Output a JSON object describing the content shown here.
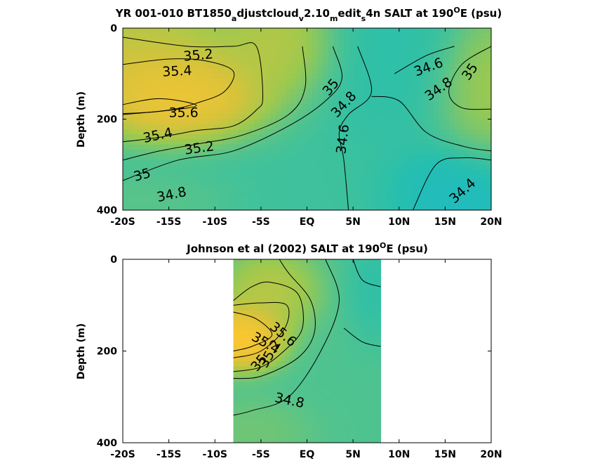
{
  "chart_data": [
    {
      "type": "heatmap",
      "title": "YR 001-010 BT1850_adjustcloud_v2.10_medit_s4n SALT at 190°E (psu)",
      "title_parts": [
        "YR 001-010 BT1850",
        "a",
        "djustcloud",
        "v",
        "2.10",
        "m",
        "edit",
        "s",
        "4n SALT at 190",
        "O",
        "E (psu)"
      ],
      "ylabel": "Depth (m)",
      "xlim": [
        -20,
        20
      ],
      "ylim": [
        0,
        400
      ],
      "y_reversed": true,
      "x_ticks": [
        {
          "value": -20,
          "label": "-20S"
        },
        {
          "value": -15,
          "label": "-15S"
        },
        {
          "value": -10,
          "label": "-10S"
        },
        {
          "value": -5,
          "label": "-5S"
        },
        {
          "value": 0,
          "label": "EQ"
        },
        {
          "value": 5,
          "label": "5N"
        },
        {
          "value": 10,
          "label": "10N"
        },
        {
          "value": 15,
          "label": "15N"
        },
        {
          "value": 20,
          "label": "20N"
        }
      ],
      "y_ticks": [
        {
          "value": 0,
          "label": "0"
        },
        {
          "value": 200,
          "label": "200"
        },
        {
          "value": 400,
          "label": "400"
        }
      ],
      "colors": [
        "#1ab5d6",
        "#26bfae",
        "#5cc486",
        "#9cc94f",
        "#d8c33a",
        "#f9c633",
        "#f9e52a"
      ],
      "color_range": [
        34.3,
        35.75
      ],
      "blobs": [
        {
          "x": -14,
          "y": 150,
          "v": 35.68,
          "rx": 7.5,
          "ry": 75
        },
        {
          "x": -18,
          "y": 60,
          "v": 35.35,
          "rx": 9,
          "ry": 110
        },
        {
          "x": -3,
          "y": 30,
          "v": 35.25,
          "rx": 5,
          "ry": 90
        },
        {
          "x": 9,
          "y": 40,
          "v": 34.55,
          "rx": 6,
          "ry": 160
        },
        {
          "x": 20,
          "y": 130,
          "v": 35.15,
          "rx": 4.5,
          "ry": 130
        },
        {
          "x": 17,
          "y": 370,
          "v": 34.38,
          "rx": 6,
          "ry": 90
        },
        {
          "x": -18,
          "y": 380,
          "v": 34.8,
          "rx": 7,
          "ry": 50
        }
      ],
      "background": 34.65,
      "contours": [
        {
          "level": "35.2",
          "points": [
            [
              -20,
              20
            ],
            [
              -13,
              40
            ],
            [
              -8,
              40
            ],
            [
              -5.5,
              40
            ],
            [
              -4.8,
              150
            ],
            [
              -5.5,
              180
            ],
            [
              -8,
              215
            ],
            [
              -12,
              225
            ],
            [
              -16,
              240
            ],
            [
              -20,
              250
            ]
          ]
        },
        {
          "level": "35.4",
          "points": [
            [
              -20,
              80
            ],
            [
              -15,
              68
            ],
            [
              -11,
              72
            ],
            [
              -8,
              95
            ],
            [
              -9,
              140
            ],
            [
              -12,
              165
            ],
            [
              -15,
              180
            ],
            [
              -20,
              190
            ]
          ]
        },
        {
          "level": "35.6",
          "points": [
            [
              -20,
              168
            ],
            [
              -16,
              155
            ],
            [
              -12,
              170
            ],
            [
              -16,
              183
            ],
            [
              -20,
              188
            ]
          ]
        },
        {
          "level": "35",
          "points": [
            [
              -0.5,
              40
            ],
            [
              -0.2,
              130
            ],
            [
              -2,
              190
            ],
            [
              -7,
              235
            ],
            [
              -12,
              255
            ],
            [
              -16,
              270
            ],
            [
              -20,
              290
            ]
          ]
        },
        {
          "level": "34.8",
          "points": [
            [
              2.8,
              40
            ],
            [
              3.8,
              110
            ],
            [
              2,
              160
            ],
            [
              -2,
              215
            ],
            [
              -8,
              270
            ],
            [
              -14,
              290
            ],
            [
              -20,
              335
            ]
          ]
        },
        {
          "level": "34.6",
          "points": [
            [
              5.5,
              40
            ],
            [
              7,
              140
            ],
            [
              4.5,
              190
            ],
            [
              3.5,
              230
            ],
            [
              4,
              290
            ],
            [
              4.5,
              400
            ]
          ]
        },
        {
          "level": "34.6",
          "points": [
            [
              9.5,
              100
            ],
            [
              13,
              60
            ],
            [
              16,
              40
            ]
          ]
        },
        {
          "level": "34.8",
          "points": [
            [
              7,
              150
            ],
            [
              10,
              160
            ],
            [
              13,
              230
            ],
            [
              17,
              260
            ],
            [
              20,
              270
            ]
          ]
        },
        {
          "level": "35",
          "points": [
            [
              20,
              40
            ],
            [
              16.8,
              80
            ],
            [
              15.4,
              140
            ],
            [
              16.8,
              175
            ],
            [
              20,
              178
            ]
          ]
        },
        {
          "level": "34.4",
          "points": [
            [
              11.5,
              400
            ],
            [
              14,
              300
            ],
            [
              17,
              285
            ],
            [
              20,
              290
            ]
          ]
        }
      ],
      "labels": [
        {
          "text": "35.2",
          "x": -11.8,
          "y": 60,
          "rot": -5
        },
        {
          "text": "35.4",
          "x": -14.1,
          "y": 95,
          "rot": -3
        },
        {
          "text": "35.6",
          "x": -13.4,
          "y": 186,
          "rot": 0
        },
        {
          "text": "35.4",
          "x": -16.2,
          "y": 236,
          "rot": -12
        },
        {
          "text": "35.2",
          "x": -11.7,
          "y": 264,
          "rot": -8
        },
        {
          "text": "35",
          "x": -17.9,
          "y": 323,
          "rot": -15
        },
        {
          "text": "34.8",
          "x": -14.7,
          "y": 366,
          "rot": -12
        },
        {
          "text": "35",
          "x": 2.6,
          "y": 130,
          "rot": -50
        },
        {
          "text": "34.8",
          "x": 4.0,
          "y": 168,
          "rot": -47
        },
        {
          "text": "34.6",
          "x": 3.9,
          "y": 244,
          "rot": -83
        },
        {
          "text": "34.6",
          "x": 13.2,
          "y": 86,
          "rot": -20
        },
        {
          "text": "34.8",
          "x": 14.3,
          "y": 134,
          "rot": -35
        },
        {
          "text": "35",
          "x": 17.7,
          "y": 96,
          "rot": -55
        },
        {
          "text": "34.4",
          "x": 16.9,
          "y": 358,
          "rot": -42
        }
      ]
    },
    {
      "type": "heatmap",
      "title": "Johnson et al (2002) SALT at 190°E (psu)",
      "title_parts": [
        "Johnson et al (2002) SALT at 190",
        "O",
        "E (psu)"
      ],
      "ylabel": "Depth (m)",
      "xlim": [
        -20,
        20
      ],
      "ylim": [
        0,
        400
      ],
      "y_reversed": true,
      "data_xlim": [
        -8,
        8
      ],
      "x_ticks": [
        {
          "value": -20,
          "label": "-20S"
        },
        {
          "value": -15,
          "label": "-15S"
        },
        {
          "value": -10,
          "label": "-10S"
        },
        {
          "value": -5,
          "label": "-5S"
        },
        {
          "value": 0,
          "label": "EQ"
        },
        {
          "value": 5,
          "label": "5N"
        },
        {
          "value": 10,
          "label": "10N"
        },
        {
          "value": 15,
          "label": "15N"
        },
        {
          "value": 20,
          "label": "20N"
        }
      ],
      "y_ticks": [
        {
          "value": 0,
          "label": "0"
        },
        {
          "value": 200,
          "label": "200"
        },
        {
          "value": 400,
          "label": "400"
        }
      ],
      "colors": [
        "#1ab5d6",
        "#26bfae",
        "#5cc486",
        "#9cc94f",
        "#d8c33a",
        "#f9c633",
        "#f9e52a"
      ],
      "color_range": [
        34.3,
        35.75
      ],
      "blobs": [
        {
          "x": -7,
          "y": 170,
          "v": 35.8,
          "rx": 3.5,
          "ry": 55
        },
        {
          "x": -4,
          "y": 70,
          "v": 35.25,
          "rx": 4,
          "ry": 70
        },
        {
          "x": 7.5,
          "y": 60,
          "v": 34.55,
          "rx": 2.5,
          "ry": 90
        },
        {
          "x": -6,
          "y": 380,
          "v": 34.9,
          "rx": 5,
          "ry": 60
        }
      ],
      "background": 34.72,
      "contours": [
        {
          "level": "35.2",
          "points": [
            [
              -8,
              90
            ],
            [
              -6,
              60
            ],
            [
              -4,
              50
            ],
            [
              -1,
              75
            ],
            [
              -0.5,
              150
            ],
            [
              -2.5,
              200
            ],
            [
              -5,
              235
            ],
            [
              -8,
              245
            ]
          ]
        },
        {
          "level": "35.4",
          "points": [
            [
              -8,
              100
            ],
            [
              -5,
              95
            ],
            [
              -2.2,
              100
            ],
            [
              -2.4,
              150
            ],
            [
              -5,
              200
            ],
            [
              -8,
              215
            ]
          ]
        },
        {
          "level": "35.6",
          "points": [
            [
              -8,
              115
            ],
            [
              -5.5,
              130
            ],
            [
              -3.8,
              165
            ],
            [
              -6,
              190
            ],
            [
              -8,
              200
            ]
          ]
        },
        {
          "level": "35",
          "points": [
            [
              -3,
              0
            ],
            [
              -2,
              30
            ],
            [
              0.4,
              90
            ],
            [
              0.8,
              160
            ],
            [
              -1,
              215
            ],
            [
              -5,
              255
            ],
            [
              -8,
              260
            ]
          ]
        },
        {
          "level": "34.8",
          "points": [
            [
              2,
              0
            ],
            [
              3.5,
              90
            ],
            [
              1.5,
              200
            ],
            [
              -2,
              300
            ],
            [
              -6,
              330
            ],
            [
              -8,
              340
            ]
          ]
        },
        {
          "level": "34.6",
          "points": [
            [
              5,
              0
            ],
            [
              6,
              45
            ],
            [
              8,
              60
            ]
          ]
        },
        {
          "level": "34.6",
          "points": [
            [
              4,
              150
            ],
            [
              6,
              180
            ],
            [
              8,
              190
            ]
          ]
        }
      ],
      "labels": [
        {
          "text": "35.6",
          "x": -2.6,
          "y": 164,
          "rot": 40
        },
        {
          "text": "35.4",
          "x": -4.5,
          "y": 183,
          "rot": 30
        },
        {
          "text": "35.2",
          "x": -4.0,
          "y": 206,
          "rot": -60
        },
        {
          "text": "35",
          "x": -5.2,
          "y": 226,
          "rot": -50
        },
        {
          "text": "34.8",
          "x": -1.9,
          "y": 308,
          "rot": 12
        }
      ]
    }
  ]
}
